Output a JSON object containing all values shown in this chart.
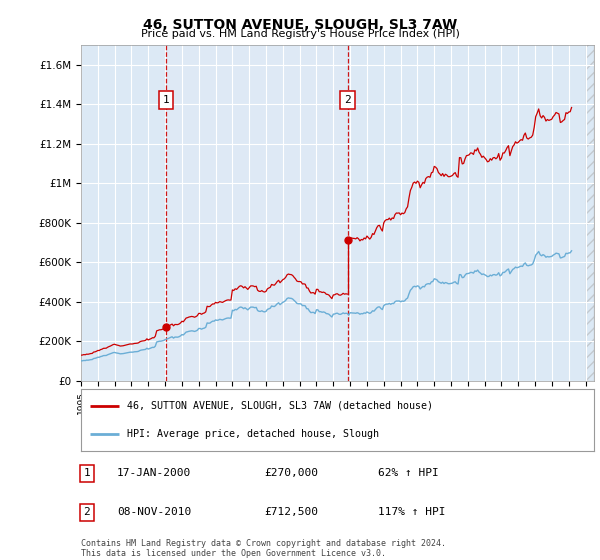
{
  "title": "46, SUTTON AVENUE, SLOUGH, SL3 7AW",
  "subtitle": "Price paid vs. HM Land Registry's House Price Index (HPI)",
  "plot_bg_color": "#dce9f5",
  "plot_highlight_color": "#e8f0f8",
  "sale1_date": 2000.04,
  "sale1_price": 270000,
  "sale1_label": "1",
  "sale2_date": 2010.85,
  "sale2_price": 712500,
  "sale2_label": "2",
  "legend_line1": "46, SUTTON AVENUE, SLOUGH, SL3 7AW (detached house)",
  "legend_line2": "HPI: Average price, detached house, Slough",
  "table_row1": [
    "1",
    "17-JAN-2000",
    "£270,000",
    "62% ↑ HPI"
  ],
  "table_row2": [
    "2",
    "08-NOV-2010",
    "£712,500",
    "117% ↑ HPI"
  ],
  "footnote": "Contains HM Land Registry data © Crown copyright and database right 2024.\nThis data is licensed under the Open Government Licence v3.0.",
  "xmin": 1995.0,
  "xmax": 2025.5,
  "ymin": 0,
  "ymax": 1700000,
  "yticks": [
    0,
    200000,
    400000,
    600000,
    800000,
    1000000,
    1200000,
    1400000,
    1600000
  ],
  "ytick_labels": [
    "£0",
    "£200K",
    "£400K",
    "£600K",
    "£800K",
    "£1M",
    "£1.2M",
    "£1.4M",
    "£1.6M"
  ],
  "hpi_color": "#6baed6",
  "price_color": "#cc0000",
  "dashed_color": "#cc0000",
  "grid_color": "#ffffff"
}
